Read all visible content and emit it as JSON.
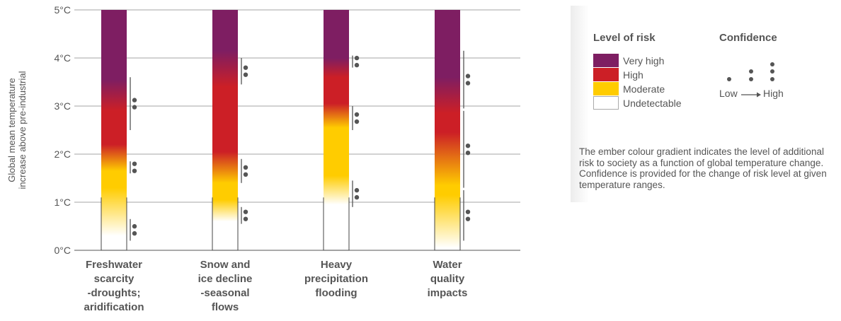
{
  "chart_data": {
    "type": "ember",
    "ylabel_lines": [
      "Global mean temperature",
      "increase above pre-industrial"
    ],
    "ylim": [
      0,
      5
    ],
    "yticks": [
      {
        "v": 0,
        "label": "0°C"
      },
      {
        "v": 1,
        "label": "1°C"
      },
      {
        "v": 2,
        "label": "2°C"
      },
      {
        "v": 3,
        "label": "3°C"
      },
      {
        "v": 4,
        "label": "4°C"
      },
      {
        "v": 5,
        "label": "5°C"
      }
    ],
    "risk_colors": {
      "undetectable": "#ffffff",
      "moderate": "#ffcc00",
      "high": "#cc1f26",
      "very_high": "#7e1e62"
    },
    "series": [
      {
        "label_lines": [
          "Freshwater",
          "scarcity",
          "-droughts;",
          "aridification"
        ],
        "stops": [
          [
            0.3,
            "undetectable"
          ],
          [
            1.3,
            "moderate"
          ],
          [
            1.65,
            "moderate"
          ],
          [
            2.2,
            "high"
          ],
          [
            2.9,
            "high"
          ],
          [
            3.55,
            "very_high"
          ]
        ],
        "confidence": [
          [
            0.2,
            0.65,
            2
          ],
          [
            1.6,
            1.85,
            2
          ],
          [
            2.5,
            3.6,
            2
          ]
        ]
      },
      {
        "label_lines": [
          "Snow and",
          "ice decline",
          "-seasonal",
          "flows"
        ],
        "stops": [
          [
            0.6,
            "undetectable"
          ],
          [
            1.05,
            "moderate"
          ],
          [
            1.4,
            "moderate"
          ],
          [
            2.05,
            "high"
          ],
          [
            3.4,
            "high"
          ],
          [
            4.15,
            "very_high"
          ]
        ],
        "confidence": [
          [
            0.55,
            0.9,
            2
          ],
          [
            1.4,
            1.9,
            2
          ],
          [
            3.45,
            4.0,
            2
          ]
        ]
      },
      {
        "label_lines": [
          "Heavy",
          "precipitation",
          "flooding"
        ],
        "stops": [
          [
            0.95,
            "undetectable"
          ],
          [
            1.55,
            "moderate"
          ],
          [
            2.55,
            "moderate"
          ],
          [
            3.05,
            "high"
          ],
          [
            3.6,
            "high"
          ],
          [
            4.0,
            "very_high"
          ]
        ],
        "confidence": [
          [
            0.9,
            1.45,
            2
          ],
          [
            2.5,
            3.0,
            2
          ],
          [
            3.8,
            4.05,
            2
          ]
        ]
      },
      {
        "label_lines": [
          "Water",
          "quality",
          "impacts"
        ],
        "stops": [
          [
            0.05,
            "undetectable"
          ],
          [
            1.15,
            "moderate"
          ],
          [
            1.35,
            "moderate"
          ],
          [
            2.45,
            "high"
          ],
          [
            2.85,
            "high"
          ],
          [
            3.6,
            "very_high"
          ]
        ],
        "confidence": [
          [
            0.2,
            1.25,
            2
          ],
          [
            1.3,
            2.9,
            2
          ],
          [
            2.95,
            4.15,
            2
          ]
        ]
      }
    ]
  },
  "legend": {
    "risk_title": "Level of risk",
    "confidence_title": "Confidence",
    "items": [
      {
        "label": "Very high",
        "color": "#7e1e62"
      },
      {
        "label": "High",
        "color": "#cc1f26"
      },
      {
        "label": "Moderate",
        "color": "#ffcc00"
      },
      {
        "label": "Undetectable",
        "color": "#ffffff"
      }
    ],
    "conf_low": "Low",
    "conf_high": "High",
    "note": "The ember colour gradient indicates the level of additional risk to society as a function of global temperature change. Confidence is provided for the change of risk level at given temperature ranges."
  }
}
